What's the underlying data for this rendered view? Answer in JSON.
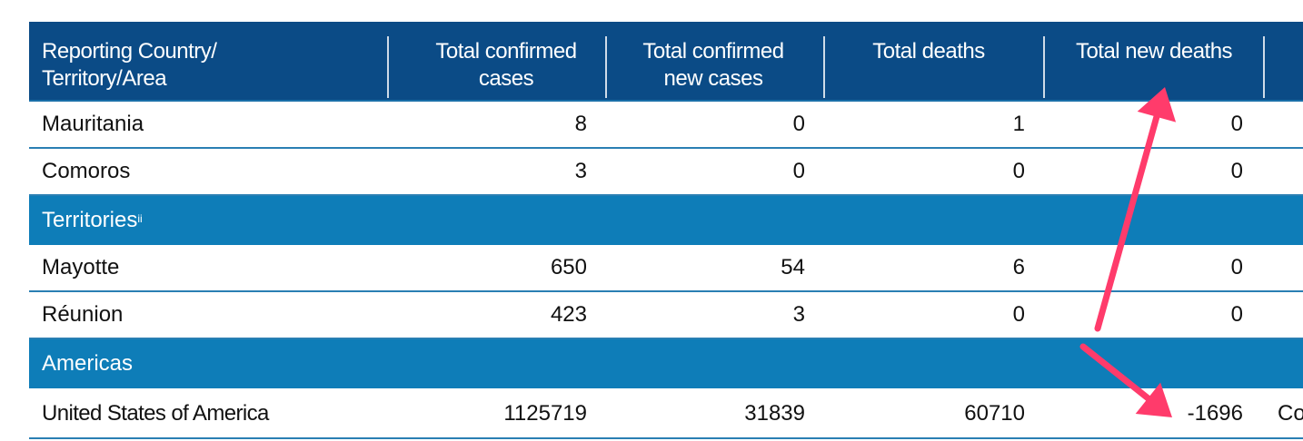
{
  "table": {
    "headers": [
      {
        "line1": "Reporting Country/",
        "line2": "Territory/Area"
      },
      {
        "line1": "Total confirmed",
        "line2": "cases"
      },
      {
        "line1": "Total confirmed",
        "line2": "new cases"
      },
      {
        "line1": "Total deaths",
        "line2": ""
      },
      {
        "line1": "Total new deaths",
        "line2": ""
      }
    ],
    "rows": [
      {
        "kind": "data",
        "name": "Mauritania",
        "cases": "8",
        "new_cases": "0",
        "deaths": "1",
        "new_deaths": "0"
      },
      {
        "kind": "data",
        "name": "Comoros",
        "cases": "3",
        "new_cases": "0",
        "deaths": "0",
        "new_deaths": "0"
      },
      {
        "kind": "section",
        "name": "Territories",
        "sup": "ii"
      },
      {
        "kind": "data",
        "name": "Mayotte",
        "cases": "650",
        "new_cases": "54",
        "deaths": "6",
        "new_deaths": "0"
      },
      {
        "kind": "data",
        "name": "Réunion",
        "cases": "423",
        "new_cases": "3",
        "deaths": "0",
        "new_deaths": "0"
      },
      {
        "kind": "section",
        "name": "Americas"
      },
      {
        "kind": "data",
        "name": "United States of America",
        "cases": "1125719",
        "new_cases": "31839",
        "deaths": "60710",
        "new_deaths": "-1696",
        "extra": "Co"
      }
    ]
  },
  "annotation": {
    "arrow_color": "#ff3b6b"
  }
}
